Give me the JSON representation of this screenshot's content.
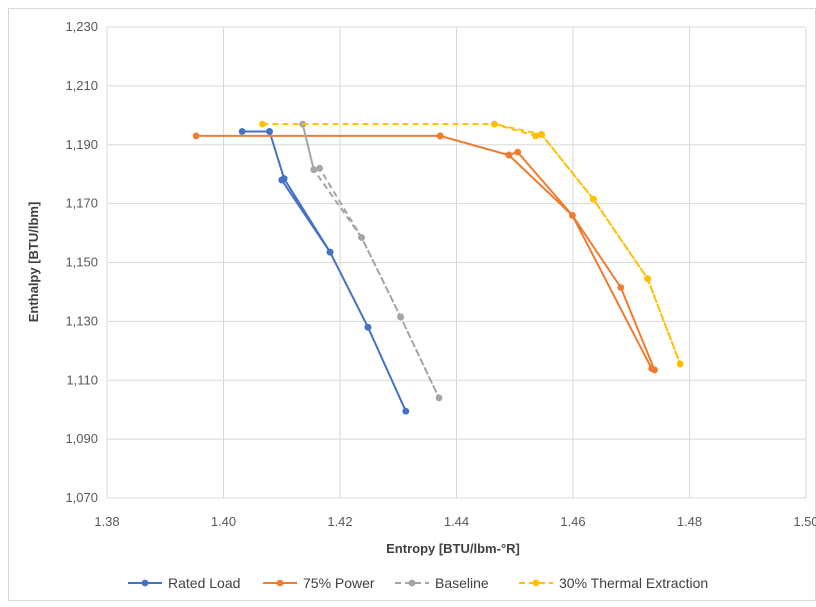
{
  "chart_data": {
    "type": "scatter",
    "title": "",
    "xlabel": "Entropy [BTU/lbm-°R]",
    "ylabel": "Enthalpy [BTU/lbm]",
    "xlim": [
      1.38,
      1.5
    ],
    "ylim": [
      1070,
      1230
    ],
    "x_ticks": [
      "1.38",
      "1.40",
      "1.42",
      "1.44",
      "1.46",
      "1.48",
      "1.50"
    ],
    "y_ticks": [
      "1,070",
      "1,090",
      "1,110",
      "1,130",
      "1,150",
      "1,170",
      "1,190",
      "1,210",
      "1,230"
    ],
    "x_tick_values": [
      1.38,
      1.4,
      1.42,
      1.44,
      1.46,
      1.48,
      1.5
    ],
    "y_tick_values": [
      1070,
      1090,
      1110,
      1130,
      1150,
      1170,
      1190,
      1210,
      1230
    ],
    "grid": true,
    "legend_position": "bottom",
    "series": [
      {
        "name": "Rated Load",
        "color": "#4472C4",
        "dash": false,
        "points": [
          [
            1.4032,
            1194.5
          ],
          [
            1.4079,
            1194.5
          ],
          [
            1.4104,
            1178.5
          ],
          [
            1.41,
            1178.0
          ],
          [
            1.4183,
            1153.5
          ],
          [
            1.4248,
            1128.0
          ],
          [
            1.4313,
            1099.5
          ],
          [
            1.4248,
            1128.0
          ],
          [
            1.4183,
            1153.5
          ],
          [
            1.4104,
            1178.5
          ],
          [
            1.4079,
            1194.5
          ]
        ]
      },
      {
        "name": "75% Power",
        "color": "#ED7D31",
        "dash": false,
        "points": [
          [
            1.3953,
            1193.0
          ],
          [
            1.4372,
            1193.0
          ],
          [
            1.449,
            1186.5
          ],
          [
            1.4505,
            1187.5
          ],
          [
            1.4599,
            1166.0
          ],
          [
            1.4682,
            1141.5
          ],
          [
            1.474,
            1113.5
          ],
          [
            1.4735,
            1114.0
          ],
          [
            1.4599,
            1166.0
          ],
          [
            1.449,
            1186.5
          ],
          [
            1.4372,
            1193.0
          ]
        ]
      },
      {
        "name": "Baseline",
        "color": "#A5A5A5",
        "dash": true,
        "points": [
          [
            1.4136,
            1197.0
          ],
          [
            1.4155,
            1181.5
          ],
          [
            1.4165,
            1182.0
          ],
          [
            1.4237,
            1158.5
          ],
          [
            1.4304,
            1131.5
          ],
          [
            1.437,
            1104.0
          ],
          [
            1.4304,
            1131.5
          ],
          [
            1.4237,
            1158.5
          ],
          [
            1.4155,
            1181.5
          ],
          [
            1.4136,
            1197.0
          ]
        ]
      },
      {
        "name": "30% Thermal Extraction",
        "color": "#FFC000",
        "dash": true,
        "points": [
          [
            1.4067,
            1197.0
          ],
          [
            1.4465,
            1197.0
          ],
          [
            1.4536,
            1193.0
          ],
          [
            1.4546,
            1193.5
          ],
          [
            1.4635,
            1171.5
          ],
          [
            1.4728,
            1144.5
          ],
          [
            1.4784,
            1115.5
          ],
          [
            1.4728,
            1144.5
          ],
          [
            1.4635,
            1171.5
          ],
          [
            1.4546,
            1193.5
          ],
          [
            1.4465,
            1197.0
          ]
        ]
      }
    ]
  }
}
